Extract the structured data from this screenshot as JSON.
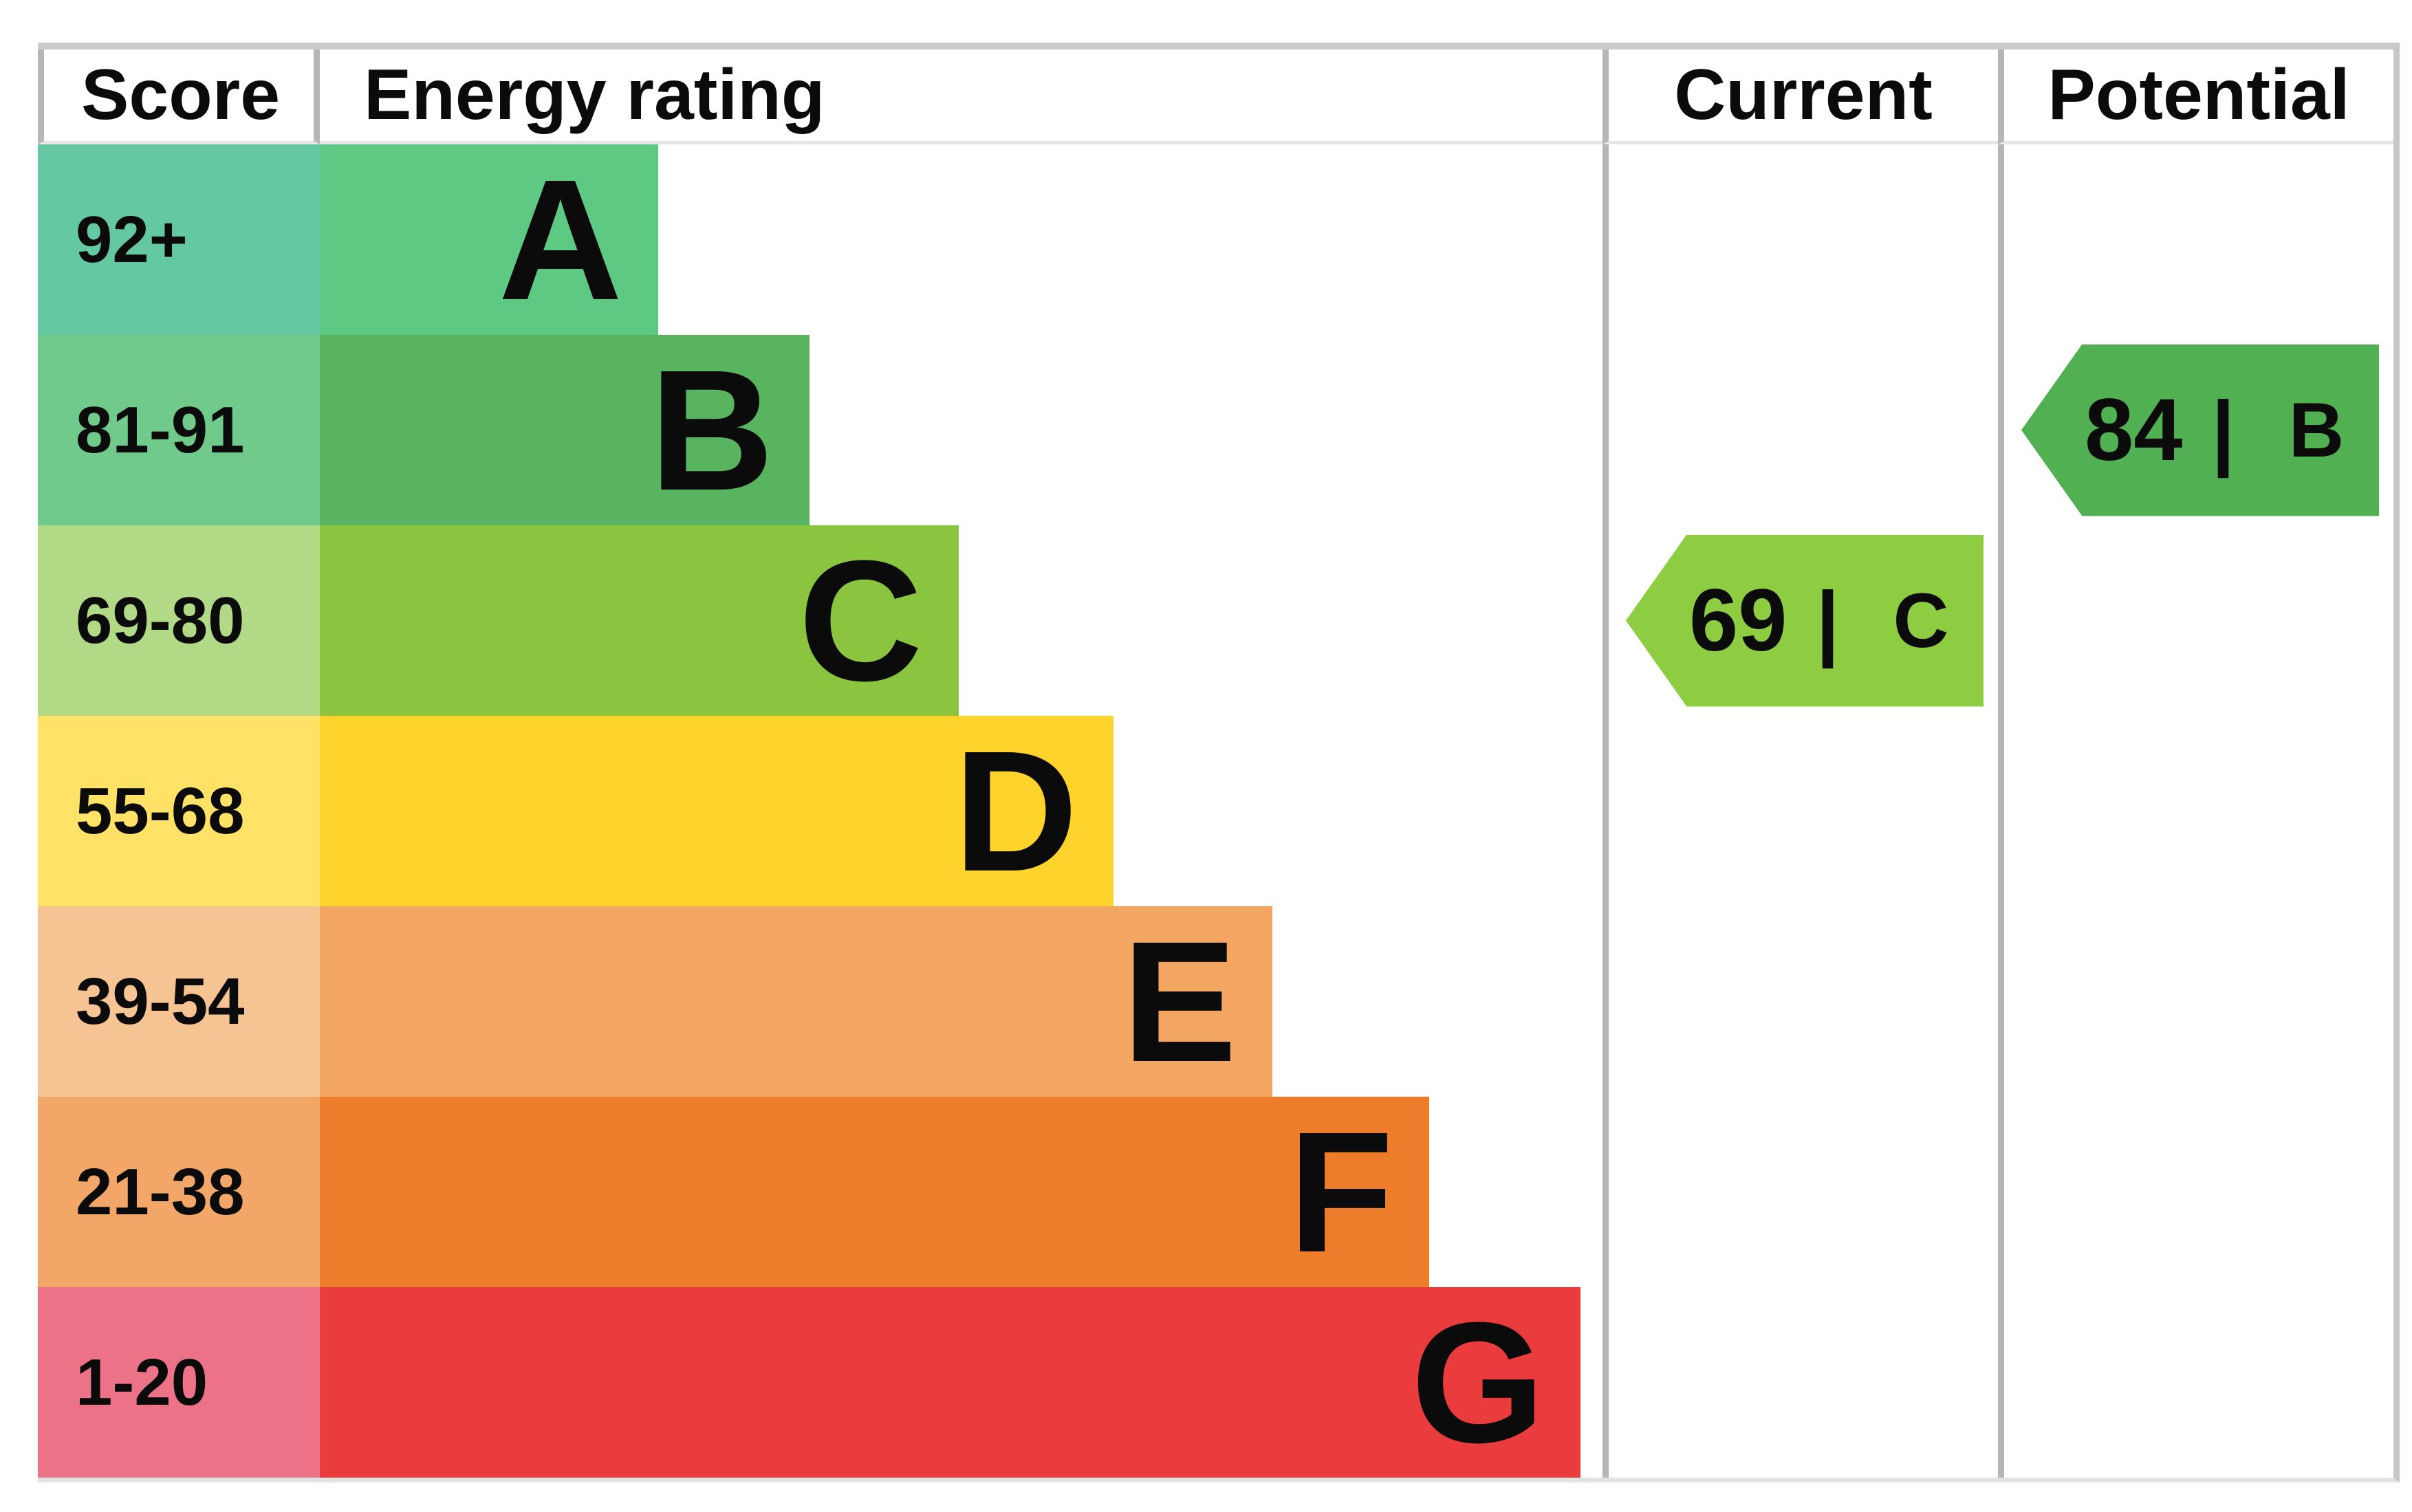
{
  "header": {
    "score": "Score",
    "energy_rating": "Energy rating",
    "current": "Current",
    "potential": "Potential"
  },
  "rows": [
    {
      "score": "92+",
      "band": "A",
      "band_color": "#5ec982",
      "score_cell_color": "#64c9a3"
    },
    {
      "score": "81-91",
      "band": "B",
      "band_color": "#58b45e",
      "score_cell_color": "#70ca8c"
    },
    {
      "score": "69-80",
      "band": "C",
      "band_color": "#8bc53f",
      "score_cell_color": "#b2d985"
    },
    {
      "score": "55-68",
      "band": "D",
      "band_color": "#fdd32c",
      "score_cell_color": "#ffe266"
    },
    {
      "score": "39-54",
      "band": "E",
      "band_color": "#f3a662",
      "score_cell_color": "#f6c493"
    },
    {
      "score": "21-38",
      "band": "F",
      "band_color": "#ee7d2b",
      "score_cell_color": "#f2a667"
    },
    {
      "score": "1-20",
      "band": "G",
      "band_color": "#ea3b3d",
      "score_cell_color": "#ec7287"
    }
  ],
  "current_arrow": {
    "value": "69",
    "separator": "|",
    "band": "C",
    "color": "#8ecd41"
  },
  "potential_arrow": {
    "value": "84",
    "separator": "|",
    "band": "B",
    "color": "#50b052"
  },
  "border_color": "#b6b6b6",
  "chart_data": {
    "type": "bar",
    "orientation": "horizontal",
    "title": "Energy rating",
    "columns": [
      "Score",
      "Energy rating",
      "Current",
      "Potential"
    ],
    "categories": [
      "A",
      "B",
      "C",
      "D",
      "E",
      "F",
      "G"
    ],
    "score_ranges": [
      "92+",
      "81-91",
      "69-80",
      "55-68",
      "39-54",
      "21-38",
      "1-20"
    ],
    "relative_bar_lengths": [
      0.24,
      0.35,
      0.47,
      0.59,
      0.72,
      0.84,
      0.96
    ],
    "band_colors": [
      "#5ec982",
      "#58b45e",
      "#8bc53f",
      "#fdd32c",
      "#f3a662",
      "#ee7d2b",
      "#ea3b3d"
    ],
    "score_cell_colors": [
      "#64c9a3",
      "#70ca8c",
      "#b2d985",
      "#ffe266",
      "#f6c493",
      "#f2a667",
      "#ec7287"
    ],
    "markers": [
      {
        "label": "Current",
        "score": 69,
        "band": "C",
        "color": "#8ecd41",
        "row": "69-80"
      },
      {
        "label": "Potential",
        "score": 84,
        "band": "B",
        "color": "#50b052",
        "row": "81-91"
      }
    ],
    "legend_position": "none",
    "grid": false
  }
}
